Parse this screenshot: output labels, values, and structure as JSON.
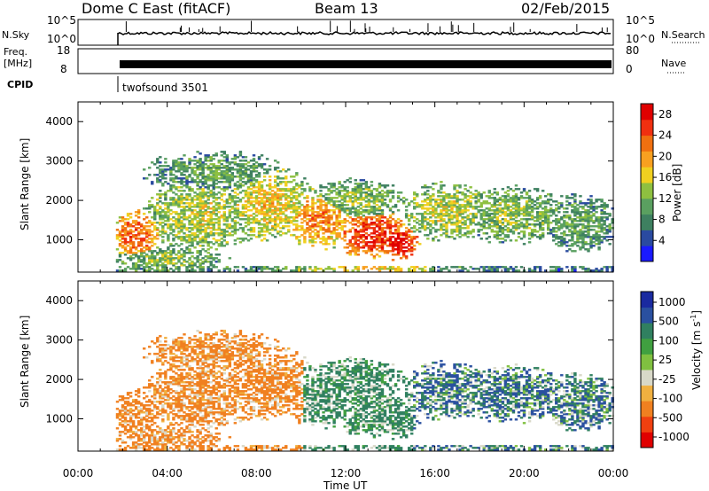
{
  "header": {
    "title": "Dome C East (fitACF)",
    "beam": "Beam 13",
    "date": "02/Feb/2015"
  },
  "panels": {
    "nsky": {
      "label": "N.Sky",
      "right_label": "N.Search",
      "ticks_left": [
        "10^5",
        "10^0"
      ],
      "ticks_right": [
        "10^5",
        "10^0"
      ]
    },
    "freq": {
      "label_line1": "Freq.",
      "label_line2": "[MHz]",
      "right_label": "Nave",
      "ticks_left": [
        "18",
        "8"
      ],
      "ticks_right": [
        "80",
        "0"
      ]
    },
    "cpid": {
      "label": "CPID",
      "program": "twofsound 3501"
    }
  },
  "colors": {
    "power": [
      "#1a1aff",
      "#2a4aa0",
      "#3e8060",
      "#5aa060",
      "#8ec040",
      "#f0d020",
      "#f8a020",
      "#f07010",
      "#f03010",
      "#e00000"
    ],
    "velocity": [
      "#e00000",
      "#f04010",
      "#f08020",
      "#f0b040",
      "#d8d8c8",
      "#80c040",
      "#40a040",
      "#308060",
      "#2a50a0",
      "#1a2aa0"
    ]
  },
  "chart_data": [
    {
      "type": "heatmap",
      "name": "power",
      "xlabel": "Time UT",
      "ylabel": "Slant Range [km]",
      "xlim": [
        0,
        24
      ],
      "ylim": [
        180,
        4500
      ],
      "x_ticks": [
        "00:00",
        "04:00",
        "08:00",
        "12:00",
        "16:00",
        "20:00",
        "00:00"
      ],
      "y_ticks": [
        1000,
        2000,
        3000,
        4000
      ],
      "colorbar": {
        "label": "Power [dB]",
        "ticks": [
          "4",
          "8",
          "12",
          "16",
          "20",
          "24",
          "28"
        ],
        "range": [
          0,
          30
        ]
      }
    },
    {
      "type": "heatmap",
      "name": "velocity",
      "xlabel": "Time UT",
      "ylabel": "Slant Range [km]",
      "xlim": [
        0,
        24
      ],
      "ylim": [
        180,
        4500
      ],
      "x_ticks": [
        "00:00",
        "04:00",
        "08:00",
        "12:00",
        "16:00",
        "20:00",
        "00:00"
      ],
      "y_ticks": [
        1000,
        2000,
        3000,
        4000
      ],
      "colorbar": {
        "label": "Velocity [m s^-1]",
        "ticks": [
          "1000",
          "500",
          "100",
          "25",
          "-25",
          "-100",
          "-500",
          "-1000"
        ]
      }
    }
  ]
}
